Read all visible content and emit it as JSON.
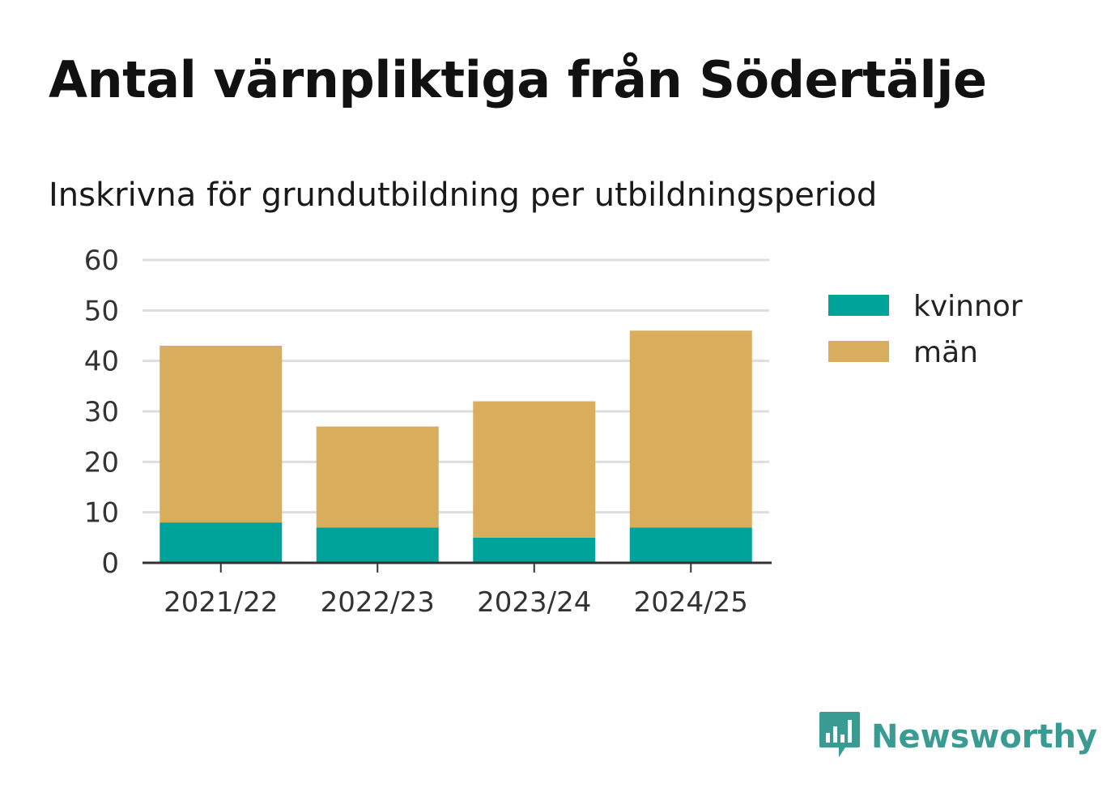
{
  "header": {
    "title": "Antal värnpliktiga från Södertälje",
    "subtitle": "Inskrivna för grundutbildning per utbildningsperiod"
  },
  "brand": {
    "name": "Newsworthy",
    "icon": "newsworthy-logo-icon",
    "color": "#3a9b92"
  },
  "colors": {
    "kvinnor": "#00a39a",
    "man": "#d8ae5c",
    "grid": "#dddddd",
    "axis": "#333333"
  },
  "chart_data": {
    "type": "bar",
    "stacked": true,
    "categories": [
      "2021/22",
      "2022/23",
      "2023/24",
      "2024/25"
    ],
    "series": [
      {
        "name": "kvinnor",
        "values": [
          8,
          7,
          5,
          7
        ]
      },
      {
        "name": "män",
        "values": [
          35,
          20,
          27,
          39
        ]
      }
    ],
    "ylim": [
      0,
      60
    ],
    "yticks": [
      0,
      10,
      20,
      30,
      40,
      50,
      60
    ],
    "grid": true,
    "legend_position": "right"
  }
}
